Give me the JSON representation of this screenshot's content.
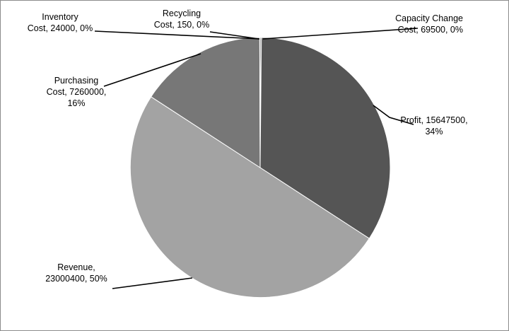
{
  "chart_data": {
    "type": "pie",
    "slices": [
      {
        "name": "Capacity Change Cost",
        "value": 69500,
        "percent": "0%",
        "color": "#4f4f4f",
        "label_lines": [
          "Capacity Change",
          "Cost, 69500, 0%"
        ]
      },
      {
        "name": "Profit",
        "value": 15647500,
        "percent": "34%",
        "color": "#555555",
        "label_lines": [
          "Profit, 15647500,",
          "34%"
        ]
      },
      {
        "name": "Revenue",
        "value": 23000400,
        "percent": "50%",
        "color": "#a3a3a3",
        "label_lines": [
          "Revenue,",
          "23000400, 50%"
        ]
      },
      {
        "name": "Purchasing Cost",
        "value": 7260000,
        "percent": "16%",
        "color": "#777777",
        "label_lines": [
          "Purchasing",
          "Cost, 7260000,",
          "16%"
        ]
      },
      {
        "name": "Inventory Cost",
        "value": 24000,
        "percent": "0%",
        "color": "#9a9a9a",
        "label_lines": [
          "Inventory",
          "Cost, 24000, 0%"
        ]
      },
      {
        "name": "Recycling Cost",
        "value": 150,
        "percent": "0%",
        "color": "#3a3a3a",
        "label_lines": [
          "Recycling",
          "Cost, 150, 0%"
        ]
      }
    ],
    "start_angle_deg": 0,
    "direction": "clockwise",
    "legend": "none",
    "colors": {
      "slice_border": "#ffffff",
      "leader_line": "#000000",
      "frame": "#8c8c8c"
    }
  }
}
